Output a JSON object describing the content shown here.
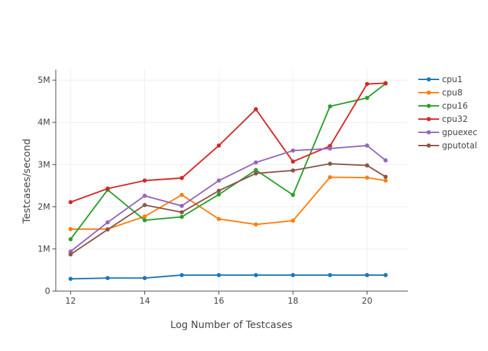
{
  "chart_data": {
    "type": "line",
    "title": "",
    "xlabel": "Log Number of Testcases",
    "ylabel": "Testcases/second",
    "xlim": [
      11.6,
      21.1
    ],
    "ylim": [
      0,
      5250000
    ],
    "x_ticks": [
      12,
      14,
      16,
      18,
      20
    ],
    "x_tick_labels": [
      "12",
      "14",
      "16",
      "18",
      "20"
    ],
    "y_ticks": [
      0,
      1000000,
      2000000,
      3000000,
      4000000,
      5000000
    ],
    "y_tick_labels": [
      "0",
      "1M",
      "2M",
      "3M",
      "4M",
      "5M"
    ],
    "grid": true,
    "legend_position": "right-top",
    "x": [
      12,
      13,
      14,
      15,
      16,
      17,
      18,
      19,
      20,
      20.5
    ],
    "series": [
      {
        "name": "cpu1",
        "color": "#1f77b4",
        "values": [
          290000,
          310000,
          310000,
          380000,
          380000,
          380000,
          380000,
          380000,
          380000,
          380000
        ]
      },
      {
        "name": "cpu8",
        "color": "#ff7f0e",
        "values": [
          1470000,
          1470000,
          1770000,
          2280000,
          1710000,
          1580000,
          1670000,
          2700000,
          2690000,
          2620000
        ]
      },
      {
        "name": "cpu16",
        "color": "#2ca02c",
        "values": [
          1230000,
          2400000,
          1680000,
          1760000,
          2290000,
          2870000,
          2280000,
          4380000,
          4580000,
          4920000
        ]
      },
      {
        "name": "cpu32",
        "color": "#d62728",
        "values": [
          2110000,
          2430000,
          2620000,
          2680000,
          3450000,
          4310000,
          3070000,
          3440000,
          4910000,
          4930000
        ]
      },
      {
        "name": "gpuexec",
        "color": "#9467bd",
        "values": [
          940000,
          1630000,
          2260000,
          2020000,
          2620000,
          3050000,
          3330000,
          3380000,
          3450000,
          3100000
        ]
      },
      {
        "name": "gputotal",
        "color": "#8c564b",
        "values": [
          870000,
          1460000,
          2040000,
          1870000,
          2380000,
          2790000,
          2860000,
          3020000,
          2980000,
          2710000
        ]
      }
    ]
  }
}
